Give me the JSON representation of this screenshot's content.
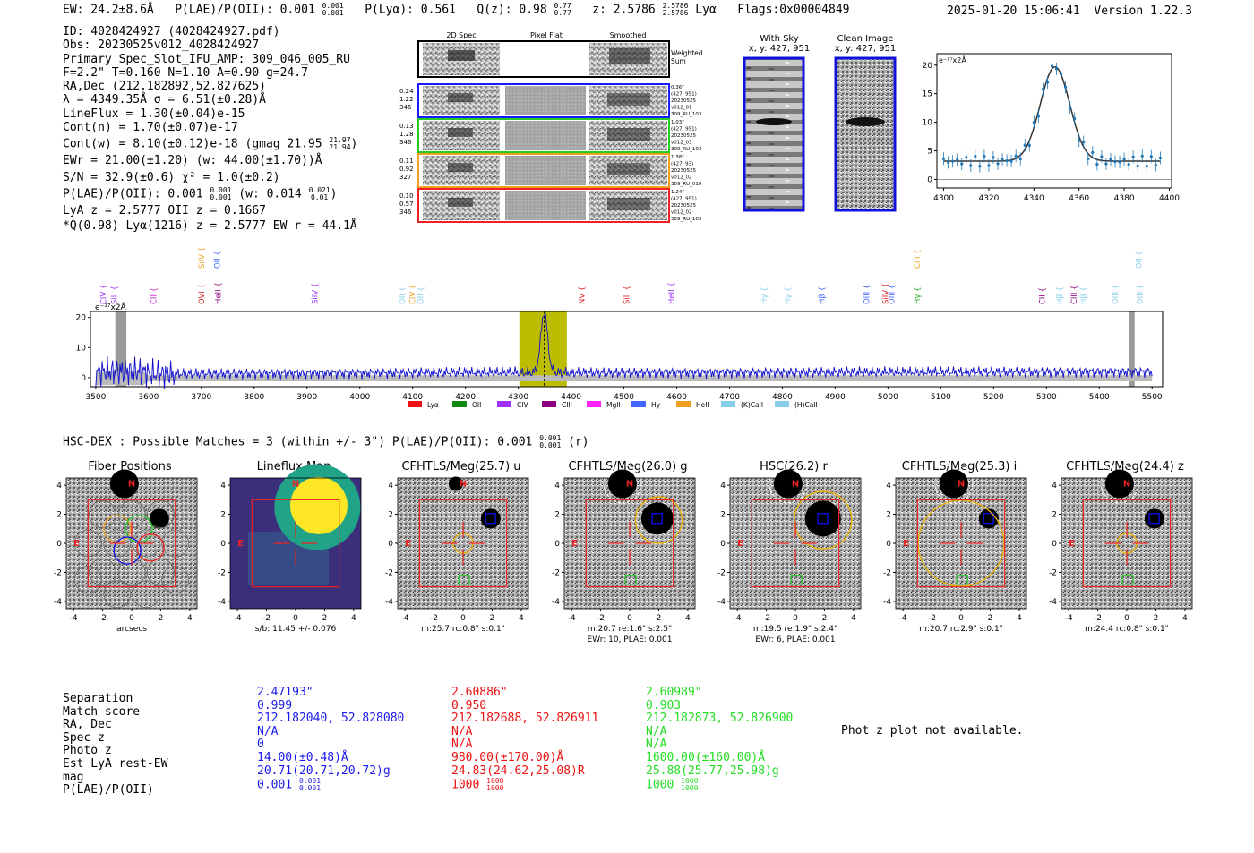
{
  "header": {
    "ew": "EW: 24.2±8.6Å",
    "plae_label": "P(LAE)/P(OII): 0.001",
    "plae_hi": "0.001",
    "plae_lo": "0.001",
    "plya": "P(Lyα): 0.561",
    "qz_label": "Q(z): 0.98",
    "qz_hi": "0.77",
    "qz_lo": "0.77",
    "z_label": "z: 2.5786",
    "z_hi": "2.5786",
    "z_lo": "2.5786",
    "line": "Lyα",
    "flags": "Flags:0x00004849",
    "timestamp": "2025-01-20 15:06:41",
    "version": "Version 1.22.3"
  },
  "info": {
    "id": "ID: 4028424927 (4028424927.pdf)",
    "obs": "Obs: 20230525v012_4028424927",
    "primary": "Primary Spec_Slot_IFU_AMP: 309_046_005_RU",
    "params": "F=2.2\"  T=0.160  N=1.10  A=0.90  g=24.7",
    "radec": "RA,Dec (212.182892,52.827625)",
    "lambda": "λ = 4349.35Å  σ = 6.51(±0.28)Å",
    "lineflux": "LineFlux = 1.30(±0.04)e-15",
    "contn": "Cont(n) = 1.70(±0.07)e-17",
    "contw": "Cont(w) = 8.10(±0.12)e-18 (gmag 21.95",
    "contw_hi": "21.97",
    "contw_lo": "21.94",
    "ewr": "EWr = 21.00(±1.20) (w: 44.00(±1.70))Å",
    "sn": "S/N = 32.9(±0.6)  χ² = 1.0(±0.2)",
    "plae": "P(LAE)/P(OII): 0.001",
    "plae_hi": "0.001",
    "plae_lo": "0.001",
    "plae_w": "(w: 0.014",
    "plae_w_hi": "0.021",
    "plae_w_lo": "0.01",
    "lyaz": "LyA z = 2.5777  OII z = 0.1667",
    "qline": "*Q(0.98) Lyα(1216) z = 2.5777  EW r = 44.1Å"
  },
  "cutouts": {
    "col_titles": [
      "2D Spec",
      "Pixel Flat",
      "Smoothed"
    ],
    "weighted": [
      "Weighted",
      "Sum"
    ],
    "rows": [
      {
        "left": [
          "0.24",
          "1.22",
          "346"
        ],
        "right": [
          "0.36\"",
          "(427, 951)",
          "20230525",
          "v012_01",
          "309_RU_103"
        ],
        "color": "#1a1aff"
      },
      {
        "left": [
          "0.13",
          "1.28",
          "346"
        ],
        "right": [
          "1.03\"",
          "(427, 951)",
          "20230525",
          "v012_03",
          "309_RU_103"
        ],
        "color": "#22cc22"
      },
      {
        "left": [
          "0.11",
          "0.92",
          "327"
        ],
        "right": [
          "1.38\"",
          "(427, 93)",
          "20230525",
          "v012_02",
          "309_RU_010"
        ],
        "color": "#f0a020"
      },
      {
        "left": [
          "0.10",
          "0.57",
          "346"
        ],
        "right": [
          "1.24\"",
          "(427, 951)",
          "20230525",
          "v012_02",
          "309_RU_103"
        ],
        "color": "#ee2222"
      }
    ]
  },
  "sky_panels": [
    {
      "title": "With Sky",
      "sub": "x, y: 427, 951"
    },
    {
      "title": "Clean Image",
      "sub": "x, y: 427, 951"
    }
  ],
  "fit_panel": {
    "unit": "e⁻¹⁷x2Å",
    "xticks": [
      "4300",
      "4320",
      "4340",
      "4360",
      "4380",
      "4400"
    ],
    "yticks": [
      "0",
      "5",
      "10",
      "15",
      "20"
    ]
  },
  "spectrum": {
    "unit": "e⁻¹⁷x2Å",
    "xticks": [
      "3500",
      "3600",
      "3700",
      "3800",
      "3900",
      "4000",
      "4100",
      "4200",
      "4300",
      "4400",
      "4500",
      "4600",
      "4700",
      "4800",
      "4900",
      "5000",
      "5100",
      "5200",
      "5300",
      "5400",
      "5500"
    ],
    "yticks": [
      "0",
      "10",
      "20"
    ],
    "line_labels": [
      {
        "t": "CIV",
        "w": 3520,
        "c": "#9b30ff",
        "row": 1
      },
      {
        "t": "SiII",
        "w": 3540,
        "c": "#9b30ff",
        "row": 1
      },
      {
        "t": "CII",
        "w": 3615,
        "c": "#cc22cc",
        "row": 1
      },
      {
        "t": "SiIV",
        "w": 3705,
        "c": "#f0a020",
        "row": 0
      },
      {
        "t": "OVI",
        "w": 3705,
        "c": "#cc2222",
        "row": 1
      },
      {
        "t": "OII",
        "w": 3735,
        "c": "#4466ff",
        "row": 0
      },
      {
        "t": "HeII",
        "w": 3737,
        "c": "#8b0080",
        "row": 1
      },
      {
        "t": "SiIV",
        "w": 3920,
        "c": "#9b30ff",
        "row": 1
      },
      {
        "t": "OII",
        "w": 4085,
        "c": "#87ceeb",
        "row": 1
      },
      {
        "t": "CIV",
        "w": 4105,
        "c": "#f0a020",
        "row": 1
      },
      {
        "t": "OII",
        "w": 4120,
        "c": "#87ceeb",
        "row": 1
      },
      {
        "t": "NV",
        "w": 4425,
        "c": "#dd2222",
        "row": 1
      },
      {
        "t": "SiII",
        "w": 4510,
        "c": "#dd2222",
        "row": 1
      },
      {
        "t": "HeII",
        "w": 4595,
        "c": "#9b30ff",
        "row": 1
      },
      {
        "t": "Hγ",
        "w": 4770,
        "c": "#87ceeb",
        "row": 1
      },
      {
        "t": "Hγ",
        "w": 4815,
        "c": "#87ceeb",
        "row": 1
      },
      {
        "t": "Hβ",
        "w": 4880,
        "c": "#4466ff",
        "row": 1
      },
      {
        "t": "OIII",
        "w": 4965,
        "c": "#4466ff",
        "row": 1
      },
      {
        "t": "SiIV",
        "w": 5000,
        "c": "#dd2222",
        "row": 1
      },
      {
        "t": "OIII",
        "w": 5012,
        "c": "#4466ff",
        "row": 1
      },
      {
        "t": "CIII",
        "w": 5060,
        "c": "#f0a020",
        "row": 0
      },
      {
        "t": "Hγ",
        "w": 5060,
        "c": "#22aa22",
        "row": 1
      },
      {
        "t": "CII",
        "w": 5297,
        "c": "#8b0080",
        "row": 1
      },
      {
        "t": "Hβ",
        "w": 5330,
        "c": "#87ceeb",
        "row": 1
      },
      {
        "t": "CIII",
        "w": 5357,
        "c": "#8b0080",
        "row": 1
      },
      {
        "t": "Hβ",
        "w": 5375,
        "c": "#87ceeb",
        "row": 1
      },
      {
        "t": "OIII",
        "w": 5435,
        "c": "#87ceeb",
        "row": 1
      },
      {
        "t": "OII",
        "w": 5480,
        "c": "#87ceeb",
        "row": 0
      },
      {
        "t": "OIII",
        "w": 5482,
        "c": "#87ceeb",
        "row": 1
      }
    ],
    "legend": [
      {
        "name": "Lyα",
        "color": "#ee1111"
      },
      {
        "name": "OII",
        "color": "#118811"
      },
      {
        "name": "CIV",
        "color": "#9b30ff"
      },
      {
        "name": "CIII",
        "color": "#8b0080"
      },
      {
        "name": "MgII",
        "color": "#ff22ff"
      },
      {
        "name": "Hγ",
        "color": "#4466ff"
      },
      {
        "name": "HeII",
        "color": "#f0a020"
      },
      {
        "name": "(K)CaII",
        "color": "#87ceeb"
      },
      {
        "name": "(H)CaII",
        "color": "#87ceeb"
      }
    ]
  },
  "hsc": {
    "title": "HSC-DEX : Possible Matches = 3 (within +/- 3\")  P(LAE)/P(OII): 0.001",
    "hi": "0.001",
    "lo": "0.001",
    "suffix": "(r)"
  },
  "image_panels": [
    {
      "title": "Fiber Positions",
      "cap1": "arcsecs",
      "cap2": ""
    },
    {
      "title": "Lineflux Map",
      "cap1": "s/b: 11.45 +/- 0.076",
      "cap2": ""
    },
    {
      "title": "CFHTLS/Meg(25.7) u",
      "cap1": "m:25.7 rc:0.8\"  s:0.1\"",
      "cap2": ""
    },
    {
      "title": "CFHTLS/Meg(26.0) g",
      "cap1": "m:20.7  re:1.6\"  s:2.5\"",
      "cap2": "EWr: 10, PLAE: 0.001"
    },
    {
      "title": "HSC(26.2) r",
      "cap1": "m:19.5  re:1.9\"  s:2.4\"",
      "cap2": "EWr: 6, PLAE: 0.001"
    },
    {
      "title": "CFHTLS/Meg(25.3) i",
      "cap1": "m:20.7 rc:2.9\"  s:0.1\"",
      "cap2": ""
    },
    {
      "title": "CFHTLS/Meg(24.4) z",
      "cap1": "m:24.4 rc:0.8\"  s:0.1\"",
      "cap2": ""
    }
  ],
  "panel_ticks": [
    "-4",
    "-2",
    "0",
    "2",
    "4"
  ],
  "compass": {
    "n": "N",
    "e": "E"
  },
  "table": {
    "labels": [
      "Separation",
      "Match score",
      "RA, Dec",
      "Spec z",
      "Photo z",
      "Est LyA rest-EW",
      "mag",
      "P(LAE)/P(OII)"
    ],
    "columns": [
      {
        "color": "#1a1aee",
        "values": [
          "2.47193\"",
          "0.999",
          "212.182040, 52.828080",
          "N/A",
          "0",
          "14.00(±0.48)Å",
          "20.71(20.71,20.72)g",
          "0.001"
        ],
        "hi": "0.001",
        "lo": "0.001"
      },
      {
        "color": "#ee1111",
        "values": [
          "2.60886\"",
          "0.950",
          "212.182688, 52.826911",
          "N/A",
          "N/A",
          "980.00(±170.00)Å",
          "24.83(24.62,25.08)R",
          "1000"
        ],
        "hi": "1000",
        "lo": "1000"
      },
      {
        "color": "#22dd22",
        "values": [
          "2.60989\"",
          "0.903",
          "212.182873, 52.826900",
          "N/A",
          "N/A",
          "1600.00(±160.00)Å",
          "25.88(25.77,25.98)g",
          "1000"
        ],
        "hi": "1000",
        "lo": "1000"
      }
    ],
    "photz": "Phot z plot not available."
  }
}
